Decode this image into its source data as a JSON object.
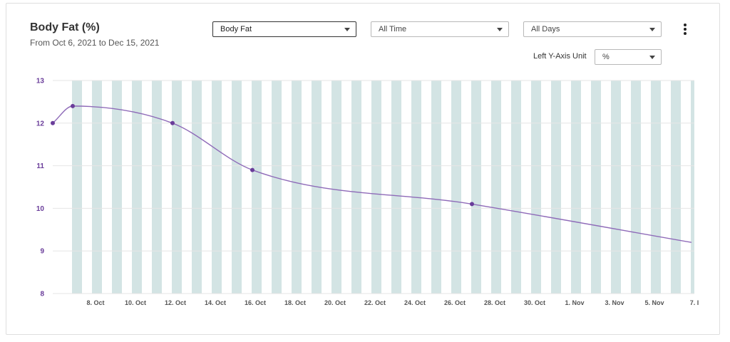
{
  "header": {
    "title": "Body Fat (%)",
    "subtitle": "From Oct 6, 2021 to Dec 15, 2021"
  },
  "controls": {
    "metric": "Body Fat",
    "time_range": "All Time",
    "days": "All Days",
    "y_unit_label": "Left Y-Axis Unit",
    "y_unit": "%"
  },
  "colors": {
    "line": "#8e6ab8",
    "point": "#6a3d9a",
    "band": "#d3e4e4",
    "grid": "#e6e6e6"
  },
  "chart_data": {
    "type": "line",
    "title": "Body Fat (%)",
    "ylim": [
      8,
      13
    ],
    "yticks": [
      8,
      9,
      10,
      11,
      12,
      13
    ],
    "xticks": [
      "8. Oct",
      "10. Oct",
      "12. Oct",
      "14. Oct",
      "16. Oct",
      "18. Oct",
      "20. Oct",
      "22. Oct",
      "24. Oct",
      "26. Oct",
      "28. Oct",
      "30. Oct",
      "1. Nov",
      "3. Nov",
      "5. Nov",
      "7. I"
    ],
    "series": [
      {
        "points": [
          {
            "x": "2021-10-06",
            "y": 12.0
          },
          {
            "x": "2021-10-07",
            "y": 12.4
          },
          {
            "x": "2021-10-12",
            "y": 12.0
          },
          {
            "x": "2021-10-16",
            "y": 10.9
          },
          {
            "x": "2021-10-27",
            "y": 10.1
          },
          {
            "x": "2021-11-07",
            "y": 9.2
          }
        ],
        "markers": [
          true,
          true,
          true,
          true,
          true,
          false
        ]
      }
    ],
    "grid": true,
    "weekday_bands": true
  }
}
